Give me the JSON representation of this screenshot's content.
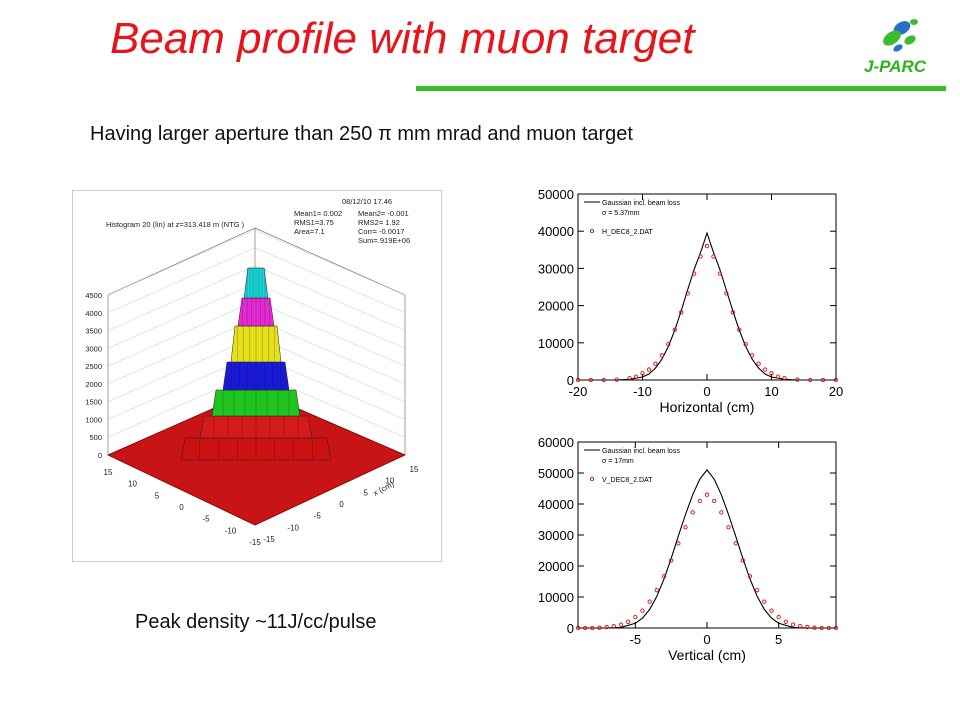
{
  "slide": {
    "title": "Beam profile with muon target",
    "subtitle": "Having larger aperture than 250 π mm mrad and muon target",
    "peak_note": "Peak density ~11J/cc/pulse",
    "logo_text": "J-PARC",
    "accent_color": "#3bbd2a",
    "title_color": "#e8141a"
  },
  "lego": {
    "header_left": "Histogram  20 (lin) at z=313.418 m (NTG )",
    "date": "08/12/10  17.46",
    "stats": [
      "Mean1=  0.002",
      "Mean2= -0.001",
      "RMS1=3.75",
      "RMS2= 1.92",
      "Area=7.1",
      "Corr= -0.0017",
      "Sum=.919E+06"
    ],
    "z_ticks": [
      "0",
      "500",
      "1000",
      "1500",
      "2000",
      "2500",
      "3000",
      "3500",
      "4000",
      "4500"
    ],
    "y_ticks": [
      "15",
      "10",
      "5",
      "0",
      "-5",
      "-10",
      "-15"
    ],
    "x_ticks": [
      "-15",
      "-10",
      "-5",
      "0",
      "5",
      "10",
      "15"
    ],
    "x_label": "x (cm)",
    "color_bands": [
      "#cc1111",
      "#1fc41f",
      "#1a1ad6",
      "#e6e01a",
      "#e629d6",
      "#1ad6d6"
    ]
  },
  "chart_data": [
    {
      "type": "line",
      "xlabel": "Horizontal (cm)",
      "xlim": [
        -20,
        20
      ],
      "ylim": [
        0,
        50000
      ],
      "x_ticks": [
        "-20",
        "-10",
        "0",
        "10",
        "20"
      ],
      "y_ticks": [
        "0",
        "10000",
        "20000",
        "30000",
        "40000",
        "50000"
      ],
      "legend": [
        "Gaussian incl. beam loss",
        "σ = 5.37mm",
        "H_DEC8_2.DAT"
      ],
      "series": [
        {
          "name": "Gaussian incl. beam loss",
          "kind": "line",
          "color": "#000000",
          "peak": 39500,
          "sigma": 5.0,
          "x": [
            -20,
            -18,
            -16,
            -14,
            -12,
            -10,
            -9,
            -8,
            -7,
            -6,
            -5,
            -4,
            -3,
            -2,
            -1,
            0,
            1,
            2,
            3,
            4,
            5,
            6,
            7,
            8,
            9,
            10,
            12,
            14,
            16,
            18,
            20
          ],
          "y": [
            0,
            0,
            0,
            0,
            200,
            800,
            1600,
            3200,
            5600,
            9000,
            13400,
            18600,
            24200,
            29700,
            34300,
            39500,
            34300,
            29700,
            24200,
            18600,
            13400,
            9000,
            5600,
            3200,
            1600,
            800,
            200,
            0,
            0,
            0,
            0
          ]
        },
        {
          "name": "H_DEC8_2.DAT",
          "kind": "scatter",
          "color": "#d01010",
          "x": [
            -20,
            -18,
            -16,
            -14,
            -12,
            -11,
            -10,
            -9,
            -8,
            -7,
            -6,
            -5,
            -4,
            -3,
            -2,
            -1,
            0,
            1,
            2,
            3,
            4,
            5,
            6,
            7,
            8,
            9,
            10,
            11,
            12,
            14,
            16,
            18,
            20
          ],
          "y": [
            0,
            0,
            0,
            100,
            500,
            900,
            1800,
            2800,
            4400,
            6600,
            9600,
            13500,
            18200,
            23300,
            28600,
            33200,
            36000,
            33200,
            28600,
            23300,
            18200,
            13500,
            9600,
            6600,
            4400,
            2800,
            1800,
            900,
            500,
            100,
            0,
            0,
            0
          ]
        }
      ]
    },
    {
      "type": "line",
      "xlabel": "Vertical (cm)",
      "xlim": [
        -9,
        9
      ],
      "ylim": [
        0,
        60000
      ],
      "x_ticks": [
        "-5",
        "0",
        "5"
      ],
      "y_ticks": [
        "0",
        "10000",
        "20000",
        "30000",
        "40000",
        "50000",
        "60000"
      ],
      "legend": [
        "Gaussian incl. beam loss",
        "σ = 17mm",
        "V_DEC8_2.DAT"
      ],
      "series": [
        {
          "name": "Gaussian incl. beam loss",
          "kind": "line",
          "color": "#000000",
          "x": [
            -9,
            -8,
            -7,
            -6,
            -5,
            -4.5,
            -4,
            -3.5,
            -3,
            -2.5,
            -2,
            -1.5,
            -1,
            -0.5,
            0,
            0.5,
            1,
            1.5,
            2,
            2.5,
            3,
            3.5,
            4,
            4.5,
            5,
            6,
            7,
            8,
            9
          ],
          "y": [
            0,
            0,
            0,
            200,
            1500,
            3200,
            6000,
            10200,
            15800,
            22500,
            29600,
            36600,
            43000,
            48000,
            51000,
            48000,
            43000,
            36600,
            29600,
            22500,
            15800,
            10200,
            6000,
            3200,
            1500,
            200,
            0,
            0,
            0
          ]
        },
        {
          "name": "V_DEC8_2.DAT",
          "kind": "scatter",
          "color": "#d01010",
          "x": [
            -9,
            -8.5,
            -8,
            -7.5,
            -7,
            -6.5,
            -6,
            -5.5,
            -5,
            -4.5,
            -4,
            -3.5,
            -3,
            -2.5,
            -2,
            -1.5,
            -1,
            -0.5,
            0,
            0.5,
            1,
            1.5,
            2,
            2.5,
            3,
            3.5,
            4,
            4.5,
            5,
            5.5,
            6,
            6.5,
            7,
            7.5,
            8,
            8.5,
            9
          ],
          "y": [
            0,
            0,
            0,
            100,
            300,
            600,
            1100,
            2000,
            3500,
            5600,
            8500,
            12200,
            16700,
            21800,
            27300,
            32500,
            37300,
            41000,
            43000,
            41000,
            37300,
            32500,
            27300,
            21800,
            16700,
            12200,
            8500,
            5600,
            3500,
            2000,
            1100,
            600,
            300,
            100,
            0,
            0,
            0
          ]
        }
      ]
    }
  ]
}
